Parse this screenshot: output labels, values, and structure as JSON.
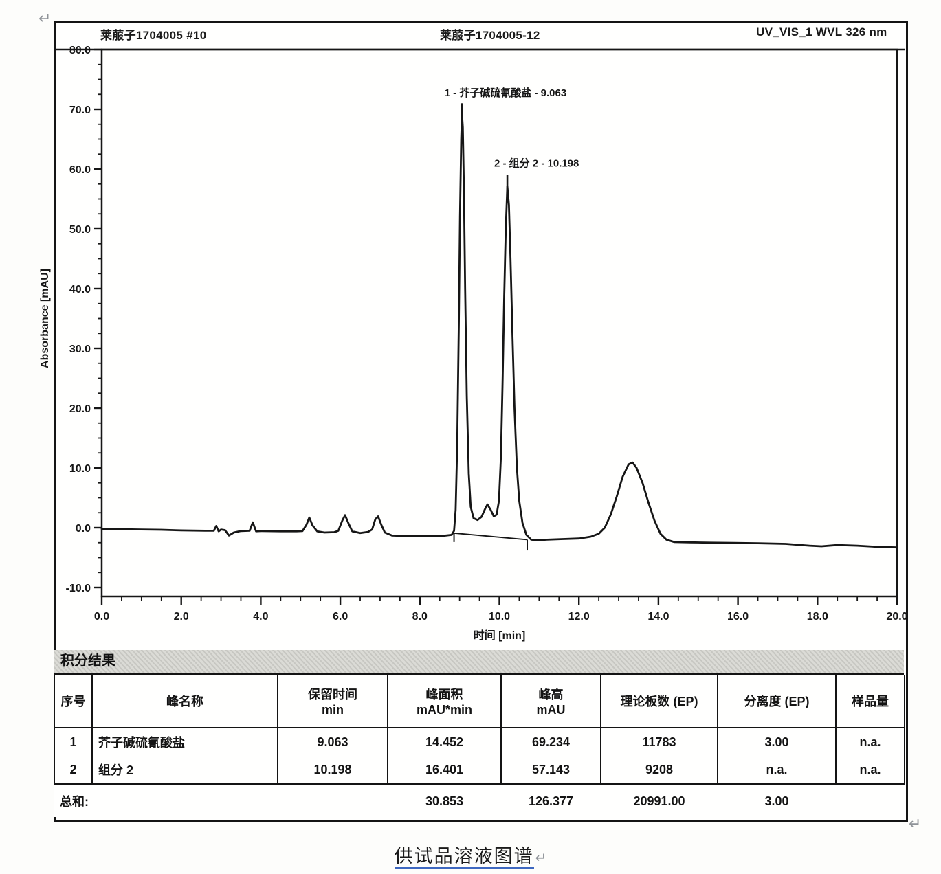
{
  "marks": {
    "pilcrow": "↵"
  },
  "header": {
    "left": "莱菔子1704005 #10",
    "center": "莱菔子1704005-12",
    "right": "UV_VIS_1 WVL 326 nm"
  },
  "chart_data": {
    "type": "line",
    "title": "",
    "xlabel": "时间 [min]",
    "ylabel": "Absorbance [mAU]",
    "xlim": [
      0,
      20
    ],
    "ylim": [
      -10,
      80
    ],
    "x_major_step": 2,
    "x_minor_step": 0.5,
    "y_major_step": 10,
    "y_minor_step": 2.5,
    "grid": false,
    "line_color": "#161616",
    "series": [
      {
        "name": "UV_VIS_1 WVL 326 nm",
        "points": [
          [
            0.0,
            -0.2
          ],
          [
            0.5,
            -0.25
          ],
          [
            1.0,
            -0.3
          ],
          [
            1.5,
            -0.35
          ],
          [
            2.0,
            -0.45
          ],
          [
            2.6,
            -0.5
          ],
          [
            2.82,
            -0.5
          ],
          [
            2.88,
            0.3
          ],
          [
            2.94,
            -0.6
          ],
          [
            3.0,
            -0.3
          ],
          [
            3.1,
            -0.4
          ],
          [
            3.2,
            -1.3
          ],
          [
            3.32,
            -0.8
          ],
          [
            3.5,
            -0.55
          ],
          [
            3.72,
            -0.5
          ],
          [
            3.8,
            0.9
          ],
          [
            3.88,
            -0.6
          ],
          [
            4.0,
            -0.55
          ],
          [
            4.5,
            -0.6
          ],
          [
            4.9,
            -0.6
          ],
          [
            5.05,
            -0.55
          ],
          [
            5.15,
            0.5
          ],
          [
            5.22,
            1.7
          ],
          [
            5.3,
            0.4
          ],
          [
            5.42,
            -0.6
          ],
          [
            5.6,
            -0.8
          ],
          [
            5.85,
            -0.75
          ],
          [
            5.95,
            -0.5
          ],
          [
            6.05,
            1.2
          ],
          [
            6.12,
            2.1
          ],
          [
            6.2,
            0.8
          ],
          [
            6.3,
            -0.6
          ],
          [
            6.5,
            -0.9
          ],
          [
            6.7,
            -0.7
          ],
          [
            6.8,
            -0.3
          ],
          [
            6.88,
            1.4
          ],
          [
            6.95,
            1.9
          ],
          [
            7.03,
            0.5
          ],
          [
            7.12,
            -0.8
          ],
          [
            7.3,
            -1.3
          ],
          [
            7.7,
            -1.4
          ],
          [
            8.2,
            -1.4
          ],
          [
            8.6,
            -1.35
          ],
          [
            8.8,
            -1.2
          ],
          [
            8.86,
            -0.5
          ],
          [
            8.9,
            3
          ],
          [
            8.94,
            14
          ],
          [
            8.98,
            34
          ],
          [
            9.01,
            52
          ],
          [
            9.04,
            65
          ],
          [
            9.06,
            69.2
          ],
          [
            9.08,
            67
          ],
          [
            9.11,
            56
          ],
          [
            9.14,
            40
          ],
          [
            9.18,
            22
          ],
          [
            9.23,
            9
          ],
          [
            9.28,
            3.5
          ],
          [
            9.35,
            1.6
          ],
          [
            9.45,
            1.3
          ],
          [
            9.55,
            1.8
          ],
          [
            9.63,
            3.0
          ],
          [
            9.7,
            3.9
          ],
          [
            9.78,
            3.0
          ],
          [
            9.86,
            1.9
          ],
          [
            9.93,
            2.2
          ],
          [
            9.99,
            4.5
          ],
          [
            10.04,
            12
          ],
          [
            10.08,
            24
          ],
          [
            10.12,
            38
          ],
          [
            10.16,
            50
          ],
          [
            10.2,
            57.1
          ],
          [
            10.24,
            54
          ],
          [
            10.28,
            45
          ],
          [
            10.33,
            32
          ],
          [
            10.38,
            20
          ],
          [
            10.44,
            10
          ],
          [
            10.5,
            4.5
          ],
          [
            10.58,
            0.8
          ],
          [
            10.68,
            -1.2
          ],
          [
            10.8,
            -2.0
          ],
          [
            10.95,
            -2.1
          ],
          [
            11.2,
            -2.0
          ],
          [
            11.6,
            -1.9
          ],
          [
            12.0,
            -1.8
          ],
          [
            12.3,
            -1.5
          ],
          [
            12.5,
            -1.0
          ],
          [
            12.65,
            0.0
          ],
          [
            12.8,
            2.2
          ],
          [
            12.95,
            5.2
          ],
          [
            13.1,
            8.5
          ],
          [
            13.25,
            10.6
          ],
          [
            13.35,
            10.9
          ],
          [
            13.45,
            10.0
          ],
          [
            13.6,
            7.5
          ],
          [
            13.75,
            4.2
          ],
          [
            13.9,
            1.2
          ],
          [
            14.05,
            -1.0
          ],
          [
            14.2,
            -2.0
          ],
          [
            14.4,
            -2.4
          ],
          [
            14.8,
            -2.45
          ],
          [
            15.3,
            -2.5
          ],
          [
            15.9,
            -2.55
          ],
          [
            16.5,
            -2.6
          ],
          [
            17.2,
            -2.7
          ],
          [
            17.8,
            -3.0
          ],
          [
            18.1,
            -3.1
          ],
          [
            18.5,
            -2.9
          ],
          [
            19.0,
            -3.0
          ],
          [
            19.5,
            -3.2
          ],
          [
            20.0,
            -3.3
          ]
        ]
      }
    ],
    "integration_baseline": {
      "from": [
        8.85,
        -0.9
      ],
      "to": [
        10.7,
        -2.0
      ],
      "ticks": [
        {
          "t": 8.86,
          "v1": -0.9,
          "v2": -2.4
        },
        {
          "t": 10.7,
          "v1": -2.0,
          "v2": -3.8
        }
      ]
    },
    "peak_annotations": [
      {
        "label": "1 - 芥子碱硫氰酸盐 - 9.063",
        "label_t": 8.62,
        "label_v": 72.2,
        "tick_t": 9.06,
        "tick_v1": 71.0,
        "tick_v2": 66.5
      },
      {
        "label": "2 - 组分 2 - 10.198",
        "label_t": 9.87,
        "label_v": 60.4,
        "tick_t": 10.2,
        "tick_v1": 59.0,
        "tick_v2": 54.5
      }
    ]
  },
  "integration_table": {
    "title": "积分结果",
    "columns": [
      {
        "label": "序号",
        "unit": ""
      },
      {
        "label": "峰名称",
        "unit": ""
      },
      {
        "label": "保留时间",
        "unit": "min"
      },
      {
        "label": "峰面积",
        "unit": "mAU*min"
      },
      {
        "label": "峰高",
        "unit": "mAU"
      },
      {
        "label": "理论板数 (EP)",
        "unit": ""
      },
      {
        "label": "分离度 (EP)",
        "unit": ""
      },
      {
        "label": "样品量",
        "unit": ""
      }
    ],
    "rows": [
      [
        "1",
        "芥子碱硫氰酸盐",
        "9.063",
        "14.452",
        "69.234",
        "11783",
        "3.00",
        "n.a."
      ],
      [
        "2",
        "组分 2",
        "10.198",
        "16.401",
        "57.143",
        "9208",
        "n.a.",
        "n.a."
      ]
    ],
    "sum": {
      "label": "总和:",
      "values": [
        "30.853",
        "126.377",
        "20991.00",
        "3.00",
        ""
      ]
    }
  },
  "caption": {
    "text": "供试品溶液图谱"
  }
}
